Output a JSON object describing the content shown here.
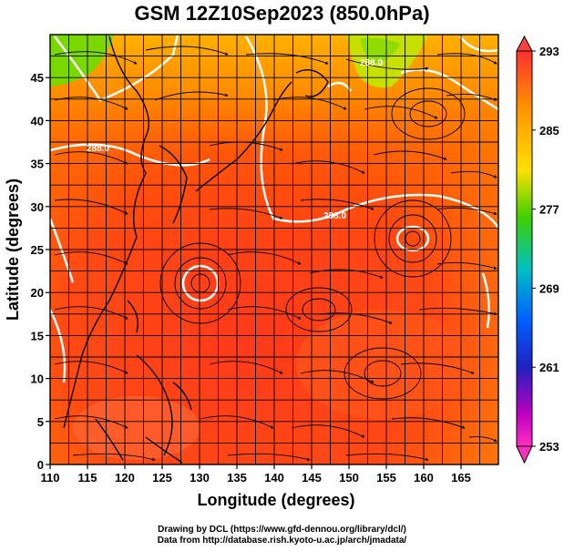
{
  "title": "GSM 12Z10Sep2023 (850.0hPa)",
  "credits": {
    "line1": "Drawing by DCL (https://www.gfd-dennou.org/library/dcl/)",
    "line2": "Data from http://database.rish.kyoto-u.ac.jp/arch/jmadata/"
  },
  "map": {
    "xlabel": "Longitude (degrees)",
    "ylabel": "Latitude (degrees)",
    "xlim": [
      110,
      170
    ],
    "ylim": [
      0,
      50
    ],
    "xticks": [
      "110",
      "115",
      "120",
      "125",
      "130",
      "135",
      "140",
      "145",
      "150",
      "155",
      "160",
      "165"
    ],
    "yticks": [
      "0",
      "5",
      "10",
      "15",
      "20",
      "25",
      "30",
      "35",
      "40",
      "45"
    ],
    "contour_labels": [
      "288.0",
      "288.0",
      "288.0"
    ],
    "colors": {
      "warm": "#ff3a1a",
      "mid": "#ff8c00",
      "cool": "#ffd000",
      "cold": "#66dd00",
      "contour": "#ffffff",
      "stream": "#000000"
    }
  },
  "colorbar": {
    "labels": [
      "293",
      "285",
      "277",
      "269",
      "261",
      "253"
    ],
    "colors": [
      "#ff3030",
      "#ff9000",
      "#ffe000",
      "#40d000",
      "#00c0c0",
      "#0060ff",
      "#2020c0",
      "#c000c0",
      "#ff30c0"
    ]
  }
}
